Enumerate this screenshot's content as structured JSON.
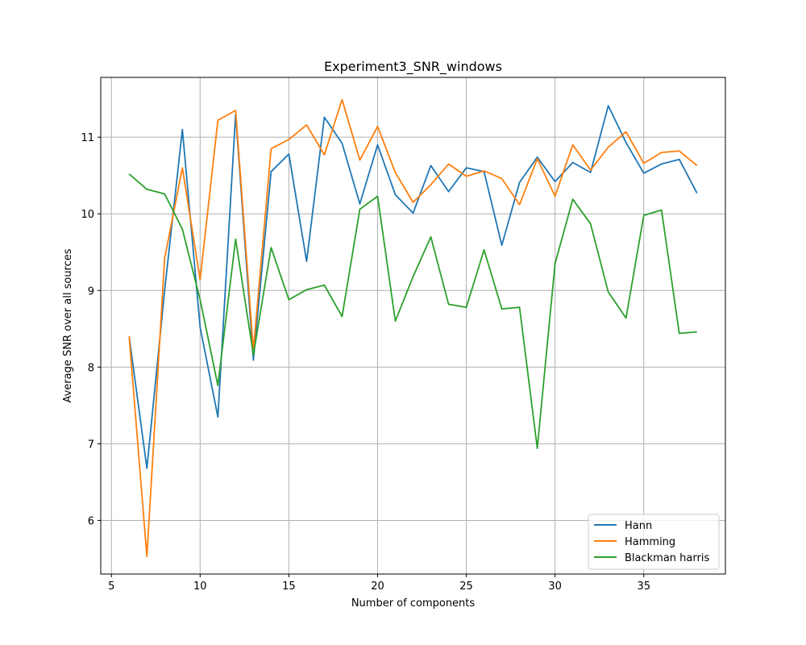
{
  "chart_data": {
    "type": "line",
    "title": "Experiment3_SNR_windows",
    "xlabel": "Number of components",
    "ylabel": "Average SNR over all sources",
    "xlim": [
      4.4,
      39.6
    ],
    "ylim": [
      5.3,
      11.78
    ],
    "xticks": [
      5,
      10,
      15,
      20,
      25,
      30,
      35
    ],
    "yticks": [
      6,
      7,
      8,
      9,
      10,
      11
    ],
    "grid": true,
    "legend_position": "lower-right",
    "x": [
      6,
      7,
      8,
      9,
      10,
      11,
      12,
      13,
      14,
      15,
      16,
      17,
      18,
      19,
      20,
      21,
      22,
      23,
      24,
      25,
      26,
      27,
      28,
      29,
      30,
      31,
      32,
      33,
      34,
      35,
      36,
      37,
      38
    ],
    "series": [
      {
        "name": "Hann",
        "color": "#1f77b4",
        "values": [
          8.4,
          6.68,
          9.0,
          11.1,
          8.52,
          7.35,
          11.3,
          8.09,
          10.55,
          10.78,
          9.38,
          11.26,
          10.92,
          10.13,
          10.9,
          10.25,
          10.01,
          10.63,
          10.29,
          10.6,
          10.55,
          9.59,
          10.41,
          10.74,
          10.42,
          10.67,
          10.54,
          11.41,
          10.93,
          10.53,
          10.65,
          10.71,
          10.27
        ]
      },
      {
        "name": "Hamming",
        "color": "#ff7f0e",
        "values": [
          8.4,
          5.53,
          9.42,
          10.6,
          9.14,
          11.22,
          11.35,
          8.22,
          10.85,
          10.97,
          11.16,
          10.77,
          11.49,
          10.7,
          11.14,
          10.54,
          10.15,
          10.38,
          10.65,
          10.49,
          10.56,
          10.46,
          10.12,
          10.72,
          10.23,
          10.9,
          10.57,
          10.87,
          11.07,
          10.66,
          10.8,
          10.82,
          10.63
        ]
      },
      {
        "name": "Blackman harris",
        "color": "#2ca02c",
        "values": [
          10.52,
          10.32,
          10.26,
          9.8,
          8.88,
          7.76,
          9.67,
          8.16,
          9.56,
          8.88,
          9.01,
          9.07,
          8.66,
          10.06,
          10.23,
          8.6,
          9.18,
          9.7,
          8.82,
          8.78,
          9.53,
          8.76,
          8.78,
          6.94,
          9.35,
          10.19,
          9.87,
          8.98,
          8.64,
          9.98,
          10.05,
          8.44,
          8.46
        ]
      }
    ]
  }
}
